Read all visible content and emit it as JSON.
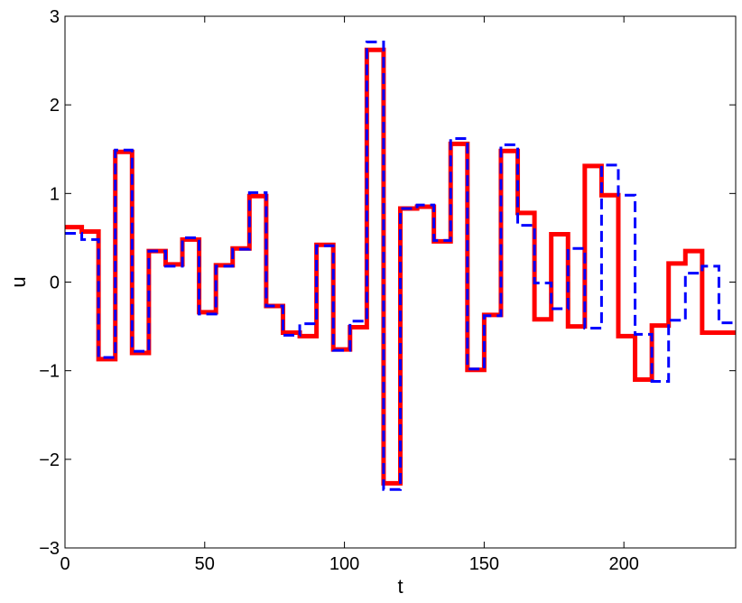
{
  "chart_data": {
    "type": "line",
    "title": "",
    "xlabel": "t",
    "ylabel": "u",
    "xlim": [
      0,
      240
    ],
    "ylim": [
      -3,
      3
    ],
    "xticks": [
      0,
      50,
      100,
      150,
      200
    ],
    "yticks": [
      -3,
      -2,
      -1,
      0,
      1,
      2,
      3
    ],
    "xtick_labels": [
      "0",
      "50",
      "100",
      "150",
      "200"
    ],
    "ytick_labels": [
      "−3",
      "−2",
      "−1",
      "0",
      "1",
      "2",
      "3"
    ],
    "grid": false,
    "legend": null,
    "step_edges": [
      0,
      6,
      12,
      18,
      24,
      30,
      36,
      42,
      48,
      54,
      60,
      66,
      72,
      78,
      84,
      90,
      96,
      102,
      108,
      114,
      120,
      126,
      132,
      138,
      144,
      150,
      156,
      162,
      168,
      174,
      180,
      186,
      192,
      198,
      204,
      210,
      216,
      222,
      228,
      234,
      240
    ],
    "series": [
      {
        "color": "#ff0000",
        "style": "solid",
        "values": [
          0.62,
          0.57,
          -0.87,
          1.47,
          -0.8,
          0.35,
          0.2,
          0.48,
          -0.34,
          0.19,
          0.38,
          0.97,
          -0.27,
          -0.57,
          -0.61,
          0.42,
          -0.76,
          -0.51,
          2.62,
          -2.27,
          0.83,
          0.85,
          0.46,
          1.56,
          -0.99,
          -0.37,
          1.48,
          0.78,
          -0.42,
          0.54,
          -0.5,
          1.31,
          0.98,
          -0.61,
          -1.1,
          -0.49,
          0.21,
          0.35,
          -0.57,
          -0.57
        ]
      },
      {
        "color": "#0000ff",
        "style": "dashed",
        "values": [
          0.55,
          0.48,
          -0.85,
          1.49,
          -0.78,
          0.35,
          0.18,
          0.5,
          -0.36,
          0.18,
          0.37,
          1.01,
          -0.27,
          -0.6,
          -0.47,
          0.41,
          -0.77,
          -0.44,
          2.71,
          -2.34,
          0.83,
          0.87,
          0.47,
          1.62,
          -0.98,
          -0.38,
          1.55,
          0.64,
          -0.01,
          -0.3,
          0.38,
          -0.52,
          1.32,
          0.98,
          -0.59,
          -1.12,
          -0.43,
          0.1,
          0.18,
          -0.46
        ]
      }
    ]
  }
}
